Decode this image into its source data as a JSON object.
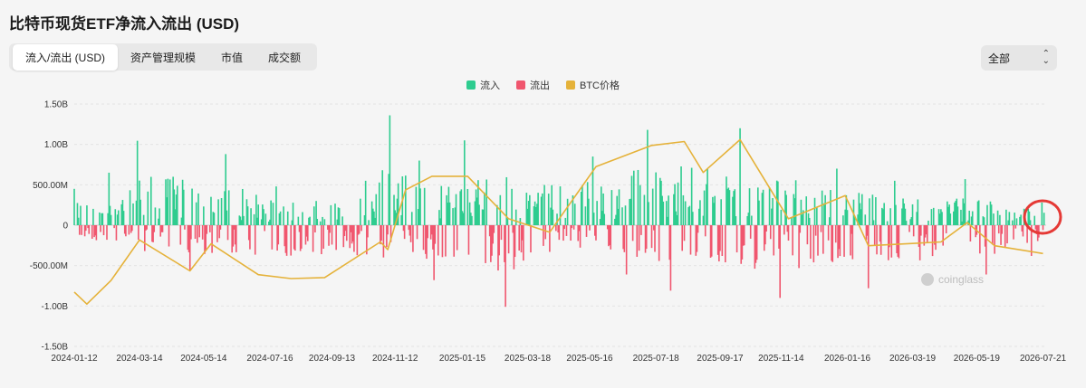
{
  "title": "比特币现货ETF净流入流出 (USD)",
  "tabs": [
    {
      "label": "流入/流出 (USD)",
      "active": true
    },
    {
      "label": "资产管理规模",
      "active": false
    },
    {
      "label": "市值",
      "active": false
    },
    {
      "label": "成交额",
      "active": false
    }
  ],
  "range_select": {
    "value": "全部"
  },
  "watermark": "coinglass",
  "colors": {
    "inflow": "#2ecc8f",
    "outflow": "#f0566e",
    "price": "#e5b23a",
    "highlight": "#e53935"
  },
  "chart_data": {
    "type": "bar",
    "legend": [
      {
        "name": "流入",
        "color": "#2ecc8f"
      },
      {
        "name": "流出",
        "color": "#f0566e"
      },
      {
        "name": "BTC价格",
        "color": "#e5b23a"
      }
    ],
    "y_ticks": [
      "1.50B",
      "1.00B",
      "500.00M",
      "0",
      "-500.00M",
      "-1.00B",
      "-1.50B"
    ],
    "ylim": [
      -1500000000,
      1500000000
    ],
    "x_ticks": [
      "2024-01-12",
      "2024-03-14",
      "2024-05-14",
      "2024-07-16",
      "2024-09-13",
      "2024-11-12",
      "2025-01-15",
      "2025-03-18",
      "2025-05-16",
      "2025-07-18",
      "2025-09-17",
      "2025-11-14",
      "2026-01-16",
      "2026-03-19",
      "2026-05-19",
      "2026-07-21"
    ],
    "inflow_peaks": [
      {
        "date": "2024-01-12",
        "value": 450000000
      },
      {
        "date": "2024-02-14",
        "value": 650000000
      },
      {
        "date": "2024-03-12",
        "value": 1045000000
      },
      {
        "date": "2024-06-04",
        "value": 880000000
      },
      {
        "date": "2024-07-22",
        "value": 480000000
      },
      {
        "date": "2024-10-15",
        "value": 550000000
      },
      {
        "date": "2024-11-07",
        "value": 1360000000
      },
      {
        "date": "2024-12-05",
        "value": 800000000
      },
      {
        "date": "2025-01-17",
        "value": 1050000000
      },
      {
        "date": "2025-05-19",
        "value": 850000000
      },
      {
        "date": "2025-07-10",
        "value": 1180000000
      },
      {
        "date": "2025-10-06",
        "value": 1200000000
      },
      {
        "date": "2026-01-06",
        "value": 700000000
      },
      {
        "date": "2026-03-02",
        "value": 550000000
      },
      {
        "date": "2026-05-08",
        "value": 570000000
      },
      {
        "date": "2026-07-20",
        "value": 280000000
      }
    ],
    "outflow_troughs": [
      {
        "date": "2024-03-19",
        "value": -320000000
      },
      {
        "date": "2024-05-01",
        "value": -560000000
      },
      {
        "date": "2024-12-19",
        "value": -680000000
      },
      {
        "date": "2025-02-25",
        "value": -1010000000
      },
      {
        "date": "2025-04-08",
        "value": -330000000
      },
      {
        "date": "2025-06-20",
        "value": -610000000
      },
      {
        "date": "2025-08-01",
        "value": -810000000
      },
      {
        "date": "2025-11-13",
        "value": -900000000
      },
      {
        "date": "2026-02-05",
        "value": -780000000
      },
      {
        "date": "2026-05-28",
        "value": -610000000
      },
      {
        "date": "2026-07-10",
        "value": -380000000
      }
    ],
    "btc_price_note": "secondary series plotted without its own axis",
    "btc_price_points": [
      {
        "date": "2024-01-12",
        "value": 46000
      },
      {
        "date": "2024-01-24",
        "value": 39800
      },
      {
        "date": "2024-02-16",
        "value": 52000
      },
      {
        "date": "2024-03-14",
        "value": 73000
      },
      {
        "date": "2024-05-01",
        "value": 57000
      },
      {
        "date": "2024-05-21",
        "value": 71000
      },
      {
        "date": "2024-07-05",
        "value": 55000
      },
      {
        "date": "2024-08-05",
        "value": 53000
      },
      {
        "date": "2024-09-06",
        "value": 53500
      },
      {
        "date": "2024-10-29",
        "value": 72000
      },
      {
        "date": "2024-11-05",
        "value": 68000
      },
      {
        "date": "2024-11-22",
        "value": 99000
      },
      {
        "date": "2024-12-17",
        "value": 106000
      },
      {
        "date": "2025-01-20",
        "value": 106000
      },
      {
        "date": "2025-02-28",
        "value": 84000
      },
      {
        "date": "2025-04-08",
        "value": 77000
      },
      {
        "date": "2025-05-22",
        "value": 111000
      },
      {
        "date": "2025-07-14",
        "value": 122000
      },
      {
        "date": "2025-08-14",
        "value": 124000
      },
      {
        "date": "2025-09-01",
        "value": 108000
      },
      {
        "date": "2025-10-06",
        "value": 125000
      },
      {
        "date": "2025-11-21",
        "value": 84000
      },
      {
        "date": "2026-01-14",
        "value": 96000
      },
      {
        "date": "2026-02-05",
        "value": 70000
      },
      {
        "date": "2026-04-15",
        "value": 72000
      },
      {
        "date": "2026-05-10",
        "value": 82000
      },
      {
        "date": "2026-06-05",
        "value": 70000
      },
      {
        "date": "2026-07-21",
        "value": 66000
      }
    ]
  }
}
